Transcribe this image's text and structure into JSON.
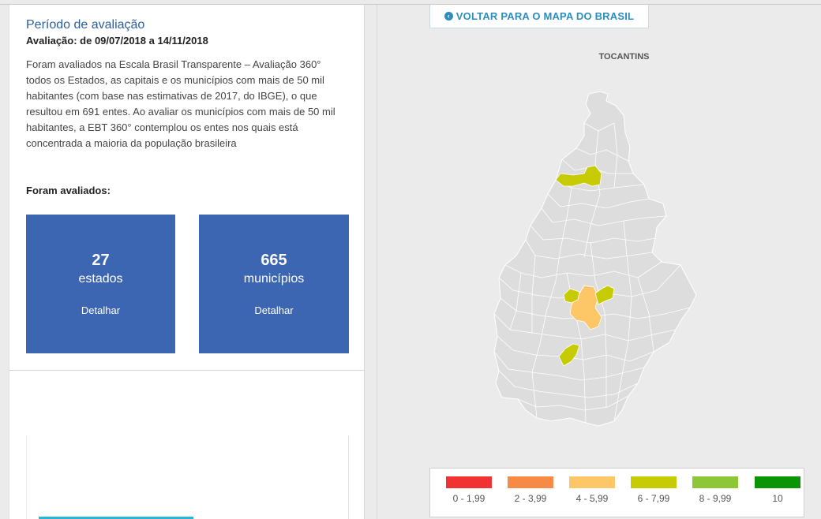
{
  "evaluation": {
    "title": "Período de avaliação",
    "dates": "Avaliação: de 09/07/2018 a 14/11/2018",
    "description": "Foram avaliados na Escala Brasil Transparente – Avaliação 360° todos os Estados, as capitais e os municípios com mais de 50 mil habitantes (com base nas estimativas de 2017, do IBGE), o que resultou em 691 entes. Ao avaliar os municípios com mais de 50 mil habitantes, a EBT 360° contemplou os entes nos quais está concentrada a maioria da população brasileira",
    "evaluated_label": "Foram avaliados:"
  },
  "cards": [
    {
      "number": "27",
      "label": "estados",
      "link": "Detalhar"
    },
    {
      "number": "665",
      "label": "municípios",
      "link": "Detalhar"
    }
  ],
  "map": {
    "back_icon": "chevron-left-circle-icon",
    "back_label": "VOLTAR PARA O MAPA DO BRASIL",
    "state_name": "TOCANTINS",
    "base_color": "#dddddd",
    "border_color": "#ffffff"
  },
  "legend": [
    {
      "label": "0 - 1,99",
      "color": "#f03232"
    },
    {
      "label": "2 - 3,99",
      "color": "#f78b45"
    },
    {
      "label": "4 - 5,99",
      "color": "#fdc767"
    },
    {
      "label": "6 - 7,99",
      "color": "#c7cb04"
    },
    {
      "label": "8 - 9,99",
      "color": "#8dc637"
    },
    {
      "label": "10",
      "color": "#0b9406"
    }
  ]
}
